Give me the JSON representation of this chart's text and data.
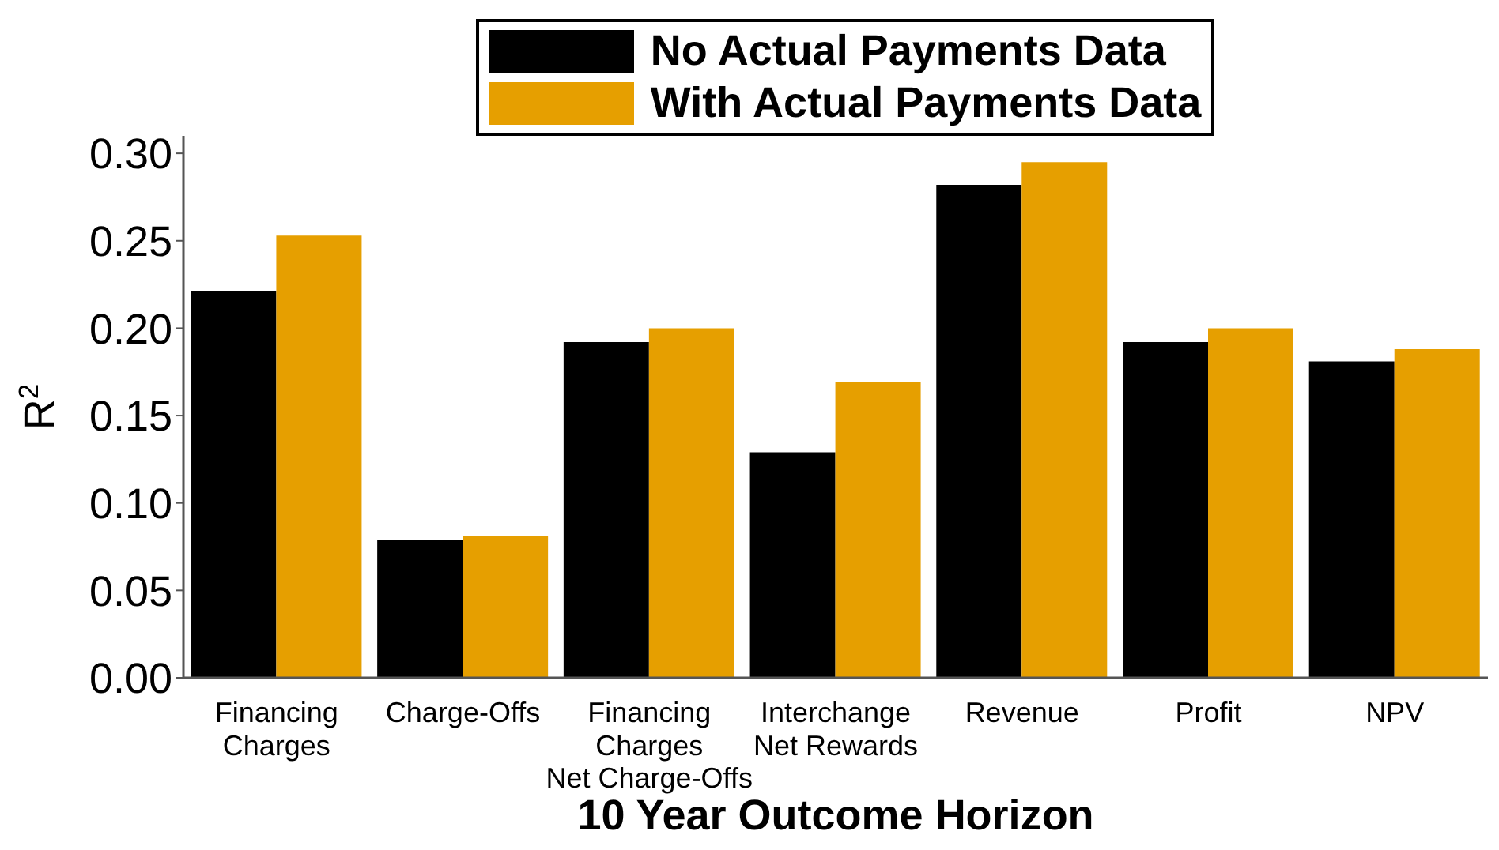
{
  "chart_data": {
    "type": "bar",
    "xlabel": "10 Year Outcome Horizon",
    "ylabel": "R$^{2}$",
    "categories": [
      "Financing\nCharges",
      "Charge-Offs",
      "Financing\nCharges\nNet Charge-Offs",
      "Interchange\nNet Rewards",
      "Revenue",
      "Profit",
      "NPV"
    ],
    "series": [
      {
        "name": "No Actual Payments Data",
        "color": "#000000",
        "values": [
          0.221,
          0.079,
          0.192,
          0.129,
          0.282,
          0.192,
          0.181
        ]
      },
      {
        "name": "With Actual Payments Data",
        "color": "#e69f00",
        "values": [
          0.253,
          0.081,
          0.2,
          0.169,
          0.295,
          0.2,
          0.188
        ]
      }
    ],
    "ylim": [
      0,
      0.31
    ],
    "yticks": [
      {
        "value": 0,
        "label": "0.00"
      },
      {
        "value": 0.05,
        "label": "0.05"
      },
      {
        "value": 0.1,
        "label": "0.10"
      },
      {
        "value": 0.15,
        "label": "0.15"
      },
      {
        "value": 0.2,
        "label": "0.20"
      },
      {
        "value": 0.25,
        "label": "0.25"
      },
      {
        "value": 0.3,
        "label": "0.30"
      }
    ],
    "grid": false,
    "legend": "top"
  }
}
